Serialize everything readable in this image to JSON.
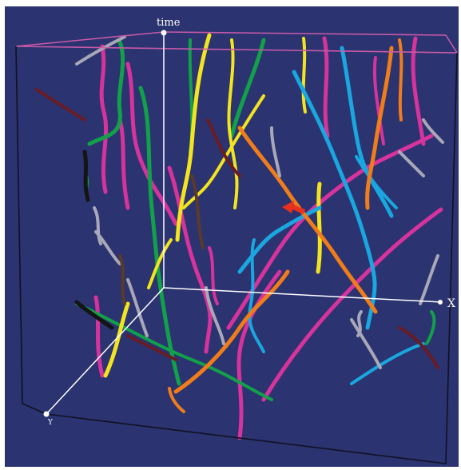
{
  "figure": {
    "background_color": "#2b3370",
    "page_color": "#ffffff",
    "box_edge_color": "#111122",
    "box_top_color": "#c85aa8",
    "axis_color": "#ffffff"
  },
  "axes": {
    "time_label": "time",
    "x_label": "X",
    "y_label": "Y"
  },
  "trajectory_colors": {
    "magenta": "#d6339c",
    "green": "#12a04a",
    "yellow": "#f2e41e",
    "cyan": "#1aa6de",
    "orange": "#f07d1a",
    "gray": "#a8a8b8",
    "darkred": "#6a1c24",
    "black": "#141414",
    "brown": "#5a3a2a"
  },
  "marker": {
    "name": "red-arrow-marker",
    "color": "#e8301e"
  }
}
